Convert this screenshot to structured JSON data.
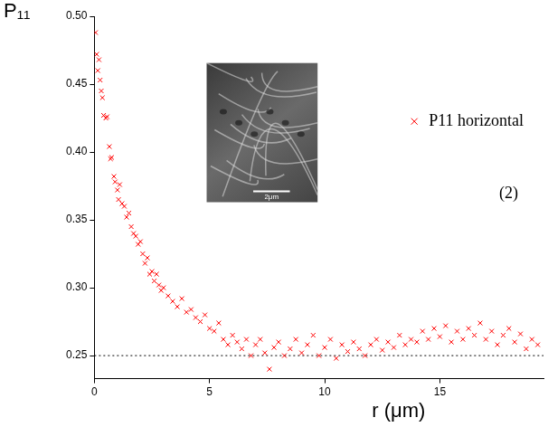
{
  "chart_data": {
    "type": "scatter",
    "y_label": "P₁₁",
    "x_label": "r (μm)",
    "annotations": [
      "(2)"
    ],
    "inset_scale_label": "2μm",
    "legend": "upper right",
    "grid": false,
    "xlim": [
      0,
      19.5
    ],
    "xticks": [
      0,
      5,
      10,
      15
    ],
    "ylim": [
      0.233,
      0.5
    ],
    "yticks": [
      0.25,
      {
        "value": 0.3,
        "label": "0.30"
      },
      0.35,
      {
        "value": 0.4,
        "label": "0.40"
      },
      0.45,
      {
        "value": 0.5,
        "label": "0.50"
      }
    ],
    "reference_y": 0.25,
    "series": [
      {
        "name": "P11 horizontal",
        "color": "#ff0000",
        "marker": "x",
        "x": [
          0.05,
          0.1,
          0.15,
          0.2,
          0.25,
          0.3,
          0.35,
          0.4,
          0.5,
          0.55,
          0.65,
          0.7,
          0.75,
          0.85,
          0.9,
          1.0,
          1.05,
          1.1,
          1.2,
          1.3,
          1.4,
          1.5,
          1.6,
          1.7,
          1.8,
          1.9,
          2.0,
          2.1,
          2.2,
          2.3,
          2.4,
          2.5,
          2.6,
          2.7,
          2.8,
          2.9,
          3.0,
          3.2,
          3.4,
          3.6,
          3.8,
          4.0,
          4.2,
          4.4,
          4.6,
          4.8,
          5.0,
          5.2,
          5.4,
          5.6,
          5.8,
          6.0,
          6.2,
          6.4,
          6.6,
          6.8,
          7.0,
          7.2,
          7.4,
          7.6,
          7.8,
          8.0,
          8.25,
          8.5,
          8.75,
          9.0,
          9.25,
          9.5,
          9.75,
          10.0,
          10.25,
          10.5,
          10.75,
          11.0,
          11.25,
          11.5,
          11.75,
          12.0,
          12.25,
          12.5,
          12.75,
          13.0,
          13.25,
          13.5,
          13.75,
          14.0,
          14.25,
          14.5,
          14.75,
          15.0,
          15.25,
          15.5,
          15.75,
          16.0,
          16.25,
          16.5,
          16.75,
          17.0,
          17.25,
          17.5,
          17.75,
          18.0,
          18.25,
          18.5,
          18.75,
          19.0,
          19.25
        ],
        "values": [
          0.488,
          0.472,
          0.46,
          0.468,
          0.453,
          0.445,
          0.44,
          0.427,
          0.425,
          0.426,
          0.404,
          0.395,
          0.396,
          0.382,
          0.378,
          0.372,
          0.365,
          0.376,
          0.362,
          0.36,
          0.352,
          0.355,
          0.345,
          0.34,
          0.338,
          0.332,
          0.334,
          0.325,
          0.318,
          0.322,
          0.31,
          0.312,
          0.305,
          0.31,
          0.302,
          0.298,
          0.3,
          0.294,
          0.29,
          0.286,
          0.292,
          0.282,
          0.284,
          0.278,
          0.275,
          0.28,
          0.27,
          0.268,
          0.274,
          0.262,
          0.258,
          0.265,
          0.26,
          0.255,
          0.262,
          0.25,
          0.258,
          0.262,
          0.252,
          0.24,
          0.256,
          0.26,
          0.25,
          0.255,
          0.262,
          0.252,
          0.258,
          0.265,
          0.25,
          0.256,
          0.262,
          0.248,
          0.258,
          0.253,
          0.26,
          0.255,
          0.25,
          0.258,
          0.262,
          0.254,
          0.26,
          0.256,
          0.265,
          0.258,
          0.262,
          0.26,
          0.268,
          0.262,
          0.27,
          0.264,
          0.272,
          0.26,
          0.268,
          0.262,
          0.27,
          0.265,
          0.274,
          0.262,
          0.268,
          0.258,
          0.265,
          0.27,
          0.26,
          0.266,
          0.255,
          0.262,
          0.258
        ]
      }
    ]
  }
}
